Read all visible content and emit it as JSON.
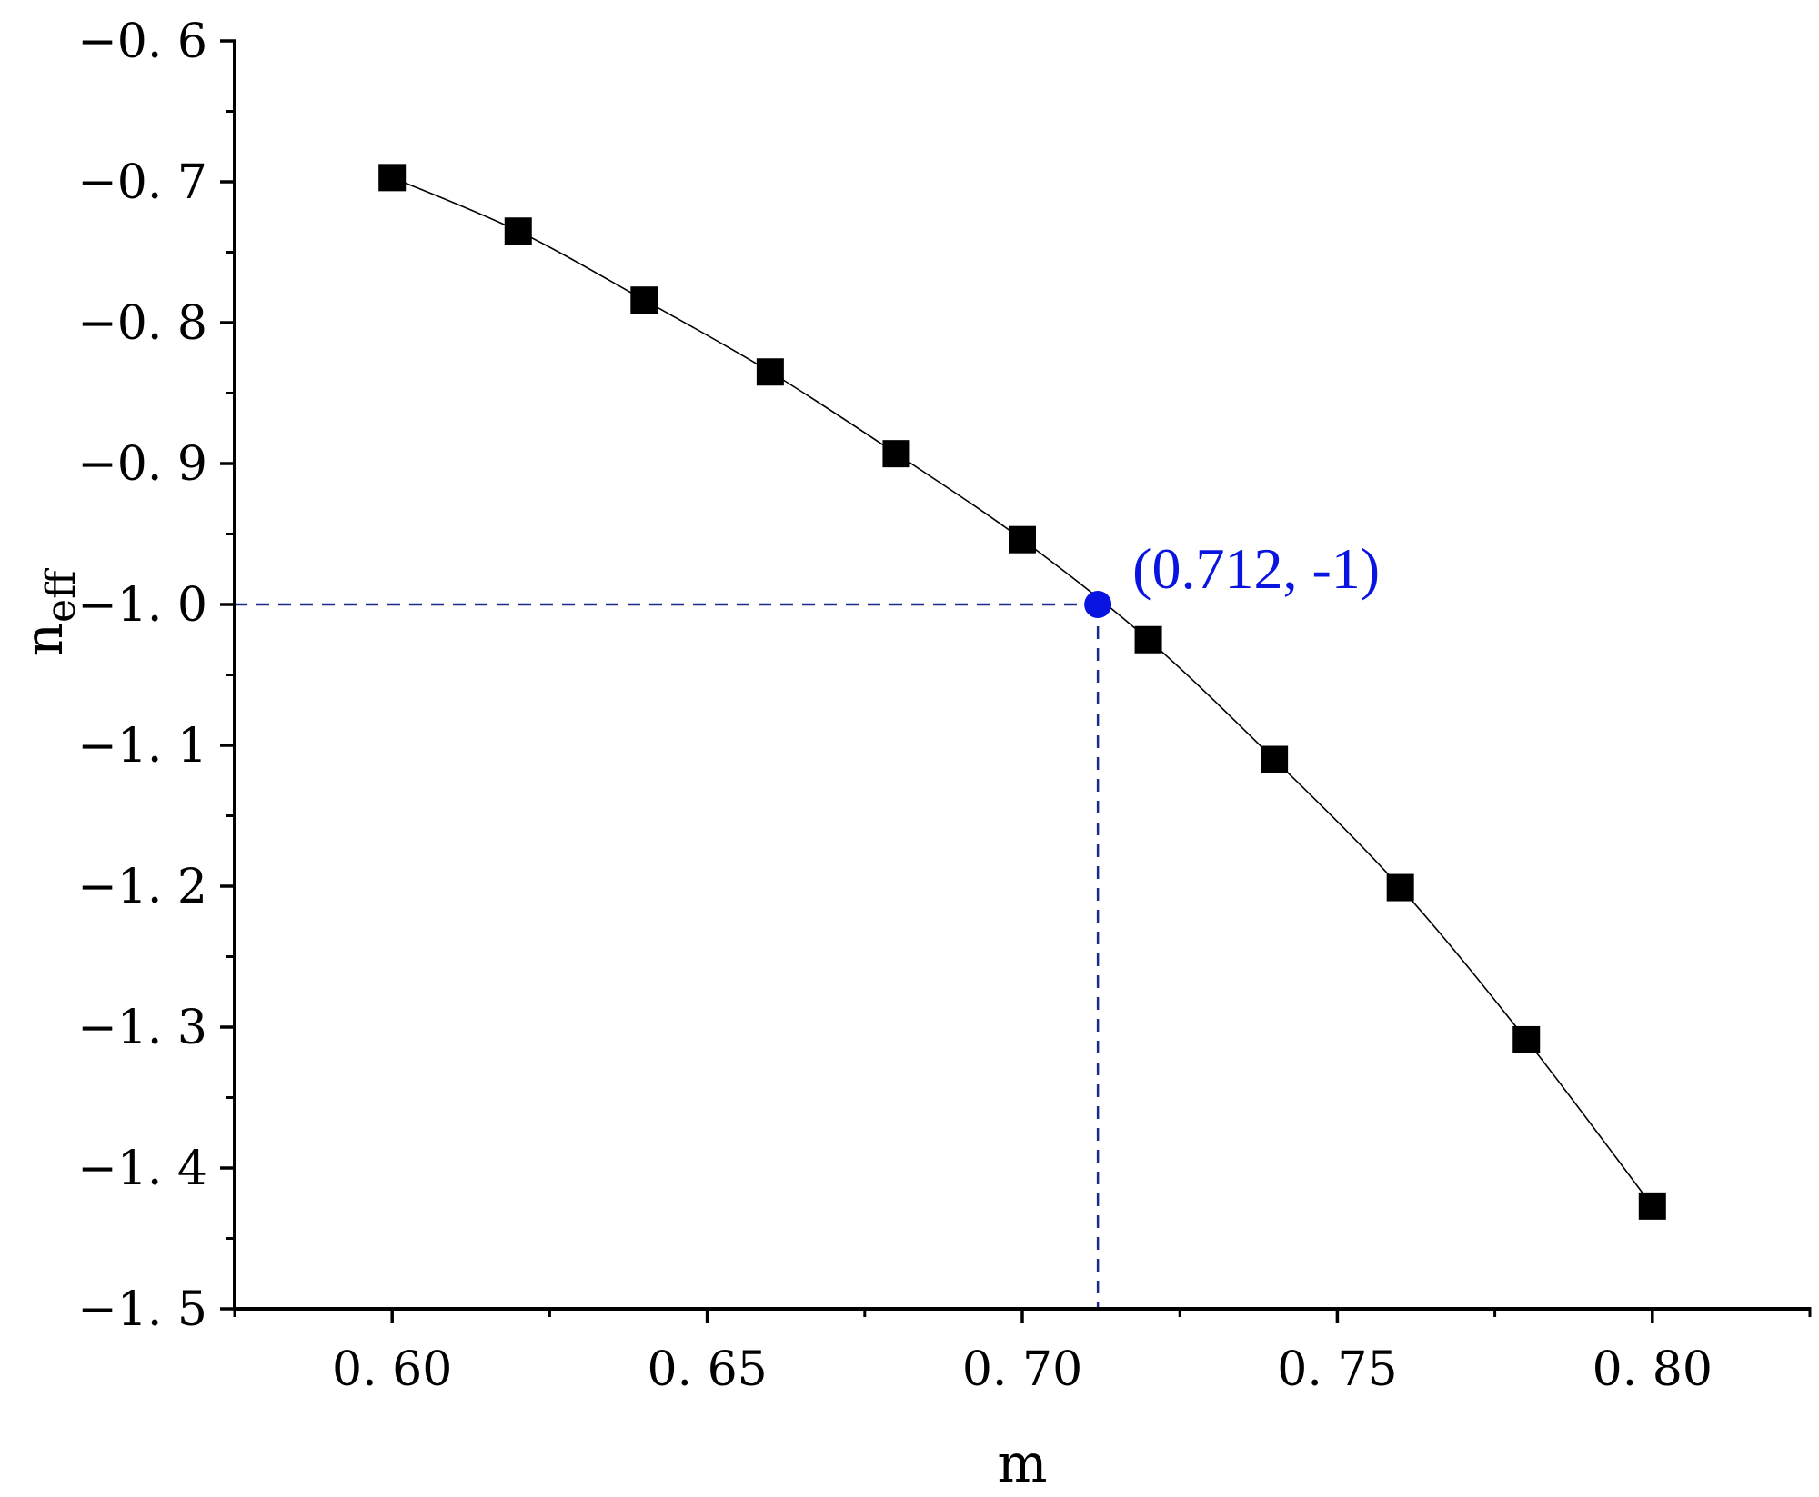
{
  "chart_data": {
    "type": "line",
    "title": "",
    "xlabel": "m",
    "ylabel": "n",
    "ylabel_sub": "eff",
    "xlim": [
      0.575,
      0.825
    ],
    "ylim": [
      -1.5,
      -0.6
    ],
    "x_ticks": [
      0.6,
      0.65,
      0.7,
      0.75,
      0.8
    ],
    "x_tick_labels": [
      "0. 60",
      "0. 65",
      "0. 70",
      "0. 75",
      "0. 80"
    ],
    "y_ticks": [
      -0.6,
      -0.7,
      -0.8,
      -0.9,
      -1.0,
      -1.1,
      -1.2,
      -1.3,
      -1.4,
      -1.5
    ],
    "y_tick_labels": [
      "−0. 6",
      "−0. 7",
      "−0. 8",
      "−0. 9",
      "−1. 0",
      "−1. 1",
      "−1. 2",
      "−1. 3",
      "−1. 4",
      "−1. 5"
    ],
    "series": [
      {
        "x": [
          0.6,
          0.62,
          0.64,
          0.66,
          0.68,
          0.7,
          0.72,
          0.74,
          0.76,
          0.78,
          0.8
        ],
        "y": [
          -0.697,
          -0.735,
          -0.784,
          -0.835,
          -0.893,
          -0.954,
          -1.025,
          -1.11,
          -1.201,
          -1.309,
          -1.427
        ],
        "marker": "square",
        "color": "#000000"
      }
    ],
    "highlight_point": {
      "x": 0.712,
      "y": -1.0,
      "color": "#0a14e0"
    },
    "annotation": {
      "text": "(0.712,  -1)",
      "color": "#0a14e0"
    },
    "guide_line_color": "#1a2a8a",
    "grid": false,
    "legend": "none"
  }
}
